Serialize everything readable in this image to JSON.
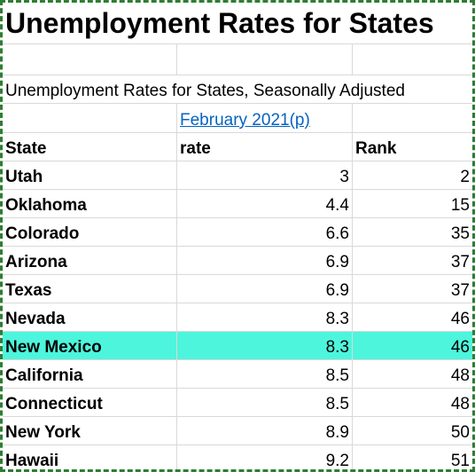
{
  "title": "Unemployment Rates for States",
  "subtitle": "Unemployment Rates for States, Seasonally Adjusted",
  "period_link": "February 2021(p)",
  "headers": {
    "state": "State",
    "rate": "rate",
    "rank": "Rank"
  },
  "highlight_color": "#4df5dc",
  "border_color": "#2e7d32",
  "link_color": "#0563c1",
  "rows": [
    {
      "state": "Utah",
      "rate": "3",
      "rank": "2"
    },
    {
      "state": "Oklahoma",
      "rate": "4.4",
      "rank": "15"
    },
    {
      "state": "Colorado",
      "rate": "6.6",
      "rank": "35"
    },
    {
      "state": "Arizona",
      "rate": "6.9",
      "rank": "37"
    },
    {
      "state": "Texas",
      "rate": "6.9",
      "rank": "37"
    },
    {
      "state": "Nevada",
      "rate": "8.3",
      "rank": "46"
    },
    {
      "state": "New Mexico",
      "rate": "8.3",
      "rank": "46",
      "highlighted": true
    },
    {
      "state": "California",
      "rate": "8.5",
      "rank": "48"
    },
    {
      "state": "Connecticut",
      "rate": "8.5",
      "rank": "48"
    },
    {
      "state": "New York",
      "rate": "8.9",
      "rank": "50"
    },
    {
      "state": "Hawaii",
      "rate": "9.2",
      "rank": "51"
    }
  ]
}
